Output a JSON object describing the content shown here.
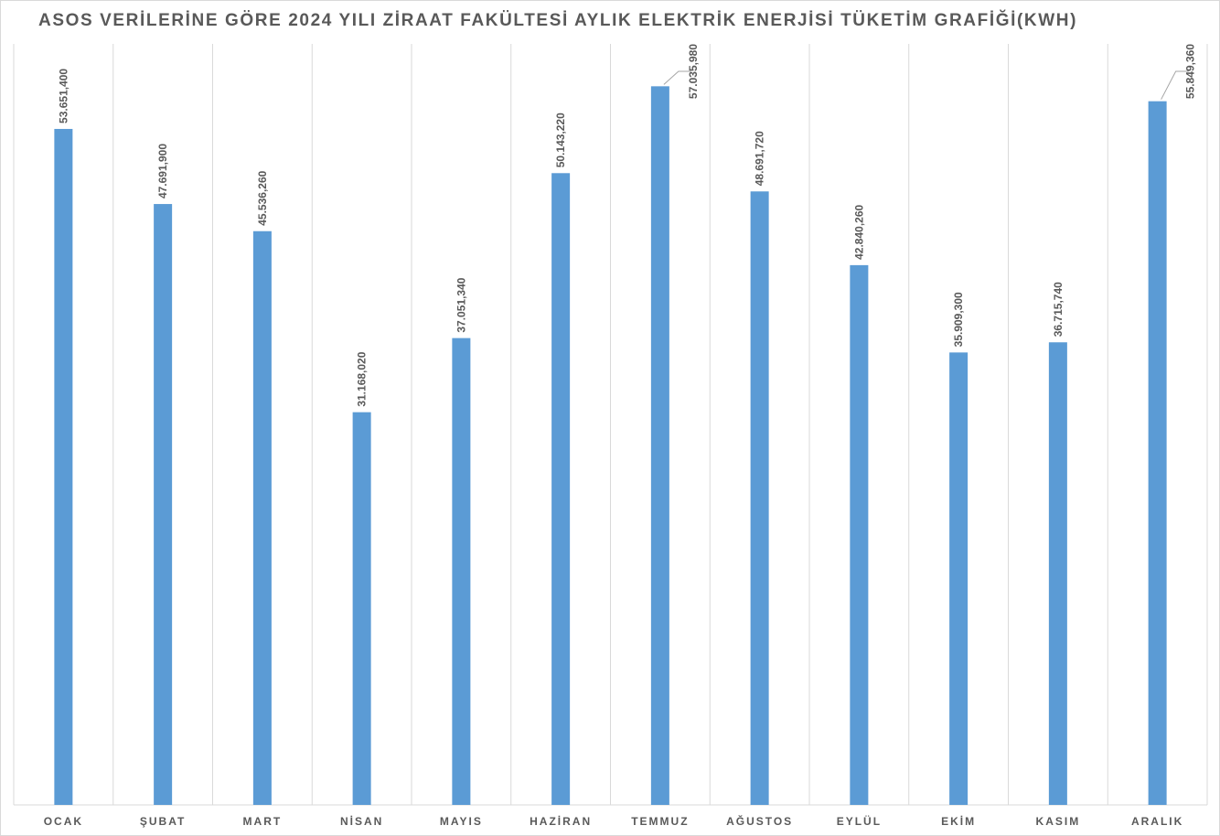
{
  "chart_data": {
    "type": "bar",
    "title": "ASOS VERİLERİNE GÖRE 2024 YILI ZİRAAT FAKÜLTESİ AYLIK ELEKTRİK ENERJİSİ TÜKETİM GRAFİĞİ(KWH)",
    "categories": [
      "OCAK",
      "ŞUBAT",
      "MART",
      "NİSAN",
      "MAYIS",
      "HAZİRAN",
      "TEMMUZ",
      "AĞUSTOS",
      "EYLÜL",
      "EKİM",
      "KASIM",
      "ARALIK"
    ],
    "values": [
      53651400,
      47691900,
      45536260,
      31168020,
      37051340,
      50143220,
      57035980,
      48691720,
      42840260,
      35909300,
      36715740,
      55849360
    ],
    "value_labels": [
      "53.651,400",
      "47.691,900",
      "45.536,260",
      "31.168,020",
      "37.051,340",
      "50.143,220",
      "57.035,980",
      "48.691,720",
      "42.840,260",
      "35.909,300",
      "36.715,740",
      "55.849,360"
    ],
    "color": "#5b9bd5",
    "ylim": [
      0,
      60400000
    ]
  }
}
